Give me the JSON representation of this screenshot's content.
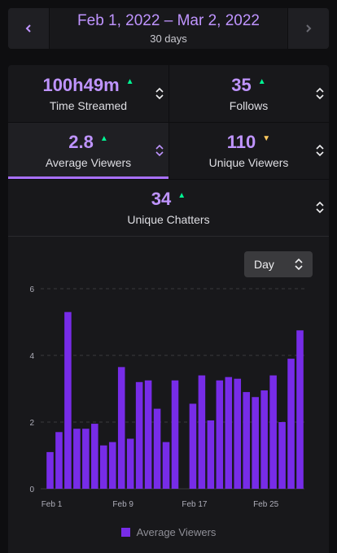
{
  "range": {
    "title": "Feb 1, 2022 – Mar 2, 2022",
    "subtitle": "30 days",
    "prev_icon": "chevron-left-icon",
    "next_icon": "chevron-right-icon"
  },
  "colors": {
    "accent": "#bf94ff",
    "bar": "#772ce8",
    "up": "#00f593",
    "down": "#ffca5f"
  },
  "stats": [
    {
      "value": "100h49m",
      "label": "Time Streamed",
      "trend": "up"
    },
    {
      "value": "35",
      "label": "Follows",
      "trend": "up"
    },
    {
      "value": "2.8",
      "label": "Average Viewers",
      "trend": "up",
      "active": true
    },
    {
      "value": "110",
      "label": "Unique Viewers",
      "trend": "down"
    },
    {
      "value": "34",
      "label": "Unique Chatters",
      "trend": "up"
    }
  ],
  "period_select": {
    "value": "Day"
  },
  "legend_label": "Average Viewers",
  "chart_data": {
    "type": "bar",
    "series": [
      {
        "name": "Average Viewers",
        "values": [
          1.1,
          1.7,
          5.3,
          1.8,
          1.8,
          1.95,
          1.3,
          1.4,
          3.65,
          1.5,
          3.2,
          3.25,
          2.4,
          1.4,
          3.25,
          0,
          2.55,
          3.4,
          2.05,
          3.25,
          3.35,
          3.3,
          2.9,
          2.75,
          2.95,
          3.4,
          2.0,
          3.9,
          4.75
        ]
      }
    ],
    "x_tick_labels": [
      "Feb 1",
      "Feb 9",
      "Feb 17",
      "Feb 25"
    ],
    "x_tick_indices": [
      0,
      8,
      16,
      24
    ],
    "y_ticks": [
      0,
      2,
      4,
      6
    ],
    "ylim": [
      0,
      6
    ],
    "grid": true,
    "legend": "bottom-center"
  }
}
